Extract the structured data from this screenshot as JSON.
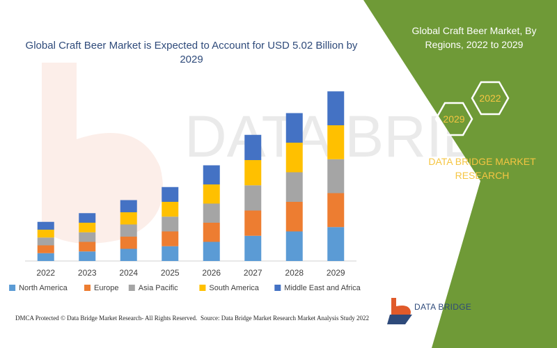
{
  "chart_data": {
    "type": "bar",
    "stacked": true,
    "title": "Global Craft Beer Market is Expected to Account for USD 5.02 Billion by 2029",
    "categories": [
      "2022",
      "2023",
      "2024",
      "2025",
      "2026",
      "2027",
      "2028",
      "2029"
    ],
    "series": [
      {
        "name": "North America",
        "color": "#5b9bd5",
        "values": [
          9,
          11,
          14,
          17,
          22,
          29,
          34,
          39
        ]
      },
      {
        "name": "Europe",
        "color": "#ed7d31",
        "values": [
          9,
          11,
          14,
          17,
          22,
          29,
          34,
          39
        ]
      },
      {
        "name": "Asia Pacific",
        "color": "#a5a5a5",
        "values": [
          9,
          11,
          14,
          17,
          22,
          29,
          34,
          39
        ]
      },
      {
        "name": "South America",
        "color": "#ffc000",
        "values": [
          9,
          11,
          14,
          17,
          22,
          29,
          34,
          39
        ]
      },
      {
        "name": "Middle East and Africa",
        "color": "#4472c4",
        "values": [
          9,
          11,
          14,
          17,
          22,
          29,
          34,
          39
        ]
      }
    ],
    "ylim": [
      0,
      200
    ],
    "y_axis_visible": false,
    "grid": false,
    "legend_position": "bottom"
  },
  "right_panel": {
    "title": "Global Craft Beer Market, By Regions, 2022 to 2029",
    "hex_year_1": "2029",
    "hex_year_2": "2022",
    "brand_text": "DATA BRIDGE MARKET RESEARCH",
    "background_color": "#6f9a37",
    "accent_color": "#f5c542"
  },
  "footer": {
    "left": "DMCA Protected © Data Bridge Market Research- All Rights Reserved.",
    "right": "Source: Data Bridge Market Research Market Analysis Study 2022"
  },
  "logo": {
    "text": "DATA BRIDGE",
    "icon": "data-bridge-logo-icon"
  }
}
